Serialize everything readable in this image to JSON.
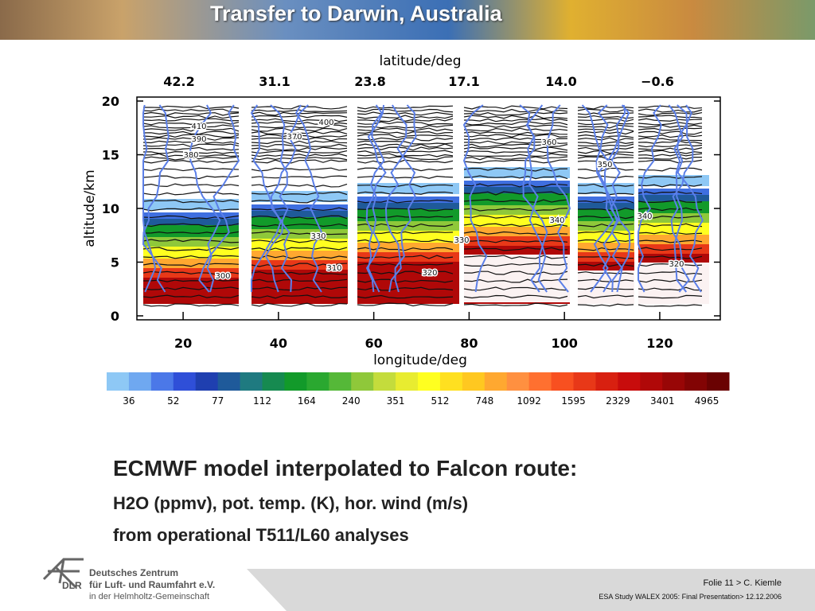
{
  "header": {
    "title": "Transfer to Darwin, Australia"
  },
  "figure": {
    "top_axis_label": "latitude/deg",
    "top_ticks": [
      "42.2",
      "31.1",
      "23.8",
      "17.1",
      "14.0",
      "−0.6"
    ],
    "y_label": "altitude/km",
    "yticks": [
      0,
      5,
      10,
      15,
      20
    ],
    "ylim": [
      0,
      20
    ],
    "x_label": "longitude/deg",
    "xticks": [
      20,
      40,
      60,
      80,
      100,
      120
    ],
    "xlim": [
      10.3,
      132.7
    ],
    "contour_labels": [
      300,
      310,
      320,
      330,
      340,
      350,
      360,
      370,
      380,
      390,
      400,
      410
    ],
    "colorbar": {
      "labels": [
        36,
        52,
        77,
        112,
        164,
        240,
        351,
        512,
        748,
        1092,
        1595,
        2329,
        3401,
        4965
      ],
      "colors": [
        "#8ec8f5",
        "#6fa8f0",
        "#4b78e8",
        "#2f4fd8",
        "#1f3fb0",
        "#1f5a9a",
        "#1f7a80",
        "#168a50",
        "#129a2a",
        "#2aa830",
        "#55b838",
        "#8fc83a",
        "#c4dc3c",
        "#e8ec30",
        "#ffff20",
        "#ffe020",
        "#ffc820",
        "#ffa830",
        "#ff9040",
        "#ff7030",
        "#f85020",
        "#e83818",
        "#d82010",
        "#c80c0c",
        "#b00808",
        "#980606",
        "#820404",
        "#6a0202"
      ]
    }
  },
  "body": {
    "heading": "ECMWF model interpolated to Falcon route:",
    "line1": "H2O (ppmv), pot. temp. (K), hor. wind (m/s)",
    "line2": "from operational T511/L60 analyses"
  },
  "footer": {
    "org1": "Deutsches Zentrum",
    "org2": "für Luft- und Raumfahrt e.V.",
    "org3": "in der Helmholtz-Gemeinschaft",
    "logo": "DLR",
    "slide": "Folie 11 > C. Kiemle",
    "event": "ESA Study WALEX 2005: Final Presentation> 12.12.2006"
  }
}
